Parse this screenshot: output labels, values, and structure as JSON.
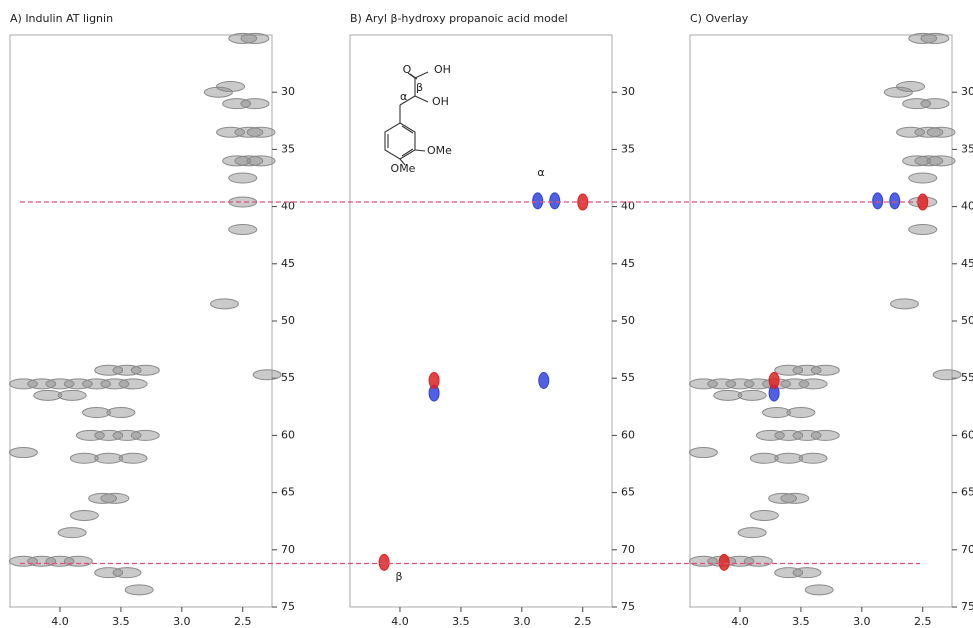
{
  "chart_data": [
    {
      "type": "scatter",
      "title": "A) Indulin AT lignin",
      "xlim": [
        4.41,
        2.26
      ],
      "ylim": [
        25,
        75
      ],
      "xticks": [
        {
          "value": 4,
          "label": "4.0"
        },
        3.5,
        {
          "value": 3,
          "label": "3.0"
        },
        2.5
      ],
      "yticks": [
        30,
        35,
        40,
        45,
        50,
        55,
        60,
        65,
        70,
        75
      ],
      "series": [
        {
          "color": "#8a8a8a",
          "x": [
            4.3,
            4.15,
            4.0,
            3.85,
            3.7,
            3.55,
            3.4,
            3.6,
            3.45,
            3.3,
            4.1,
            3.9,
            3.75,
            3.6,
            3.45,
            3.3,
            3.8,
            3.6,
            3.4,
            3.7,
            3.5,
            4.3,
            3.65,
            3.55,
            3.8,
            4.3,
            4.15,
            4.0,
            3.85,
            3.6,
            3.45,
            3.35,
            3.9,
            2.5,
            2.5,
            2.55,
            2.4,
            2.45,
            2.35,
            2.6,
            2.7,
            2.55,
            2.45,
            2.35,
            2.5,
            2.65,
            2.3,
            2.5,
            2.4,
            2.6
          ],
          "values": [
            55.5,
            55.5,
            55.5,
            55.5,
            55.5,
            55.5,
            55.5,
            54.3,
            54.3,
            54.3,
            56.5,
            56.5,
            60,
            60,
            60,
            60,
            62,
            62,
            62,
            58,
            58,
            61.5,
            65.5,
            65.5,
            67,
            71,
            71,
            71,
            71,
            72,
            72,
            73.5,
            68.5,
            39.6,
            37.5,
            31,
            31,
            33.5,
            33.5,
            33.5,
            30,
            36,
            36,
            36,
            42,
            48.5,
            54.7,
            25.3,
            25.3,
            29.5
          ]
        }
      ]
    },
    {
      "type": "scatter",
      "title": "B) Aryl β-hydroxy propanoic acid model",
      "xlim": [
        4.41,
        2.26
      ],
      "ylim": [
        25,
        75
      ],
      "xticks": [
        {
          "value": 4,
          "label": "4.0"
        },
        3.5,
        {
          "value": 3,
          "label": "3.0"
        },
        2.5
      ],
      "yticks": [
        30,
        35,
        40,
        45,
        50,
        55,
        60,
        65,
        70,
        75
      ],
      "annotations": [
        "α",
        "β"
      ],
      "structure_labels": [
        "O",
        "OH",
        "β",
        "α",
        "OH",
        "OMe",
        "OMe"
      ],
      "series": [
        {
          "color": "#3344dd",
          "x": [
            2.87,
            2.73,
            3.72,
            2.82
          ],
          "values": [
            39.5,
            39.5,
            56.3,
            55.2
          ]
        },
        {
          "color": "#dd2222",
          "x": [
            2.5,
            3.72,
            4.13
          ],
          "values": [
            39.6,
            55.2,
            71.1
          ]
        }
      ]
    },
    {
      "type": "scatter",
      "title": "C) Overlay",
      "xlim": [
        4.41,
        2.26
      ],
      "ylim": [
        25,
        75
      ],
      "xticks": [
        {
          "value": 4,
          "label": "4.0"
        },
        3.5,
        {
          "value": 3,
          "label": "3.0"
        },
        2.5
      ],
      "yticks": [
        30,
        35,
        40,
        45,
        50,
        55,
        60,
        65,
        70,
        75
      ],
      "series": [
        {
          "color": "#8a8a8a",
          "x": [
            4.3,
            4.15,
            4.0,
            3.85,
            3.7,
            3.55,
            3.4,
            3.6,
            3.45,
            3.3,
            4.1,
            3.9,
            3.75,
            3.6,
            3.45,
            3.3,
            3.8,
            3.6,
            3.4,
            3.7,
            3.5,
            4.3,
            3.65,
            3.55,
            3.8,
            4.3,
            4.15,
            4.0,
            3.85,
            3.6,
            3.45,
            3.35,
            3.9,
            2.5,
            2.5,
            2.55,
            2.4,
            2.45,
            2.35,
            2.6,
            2.7,
            2.55,
            2.45,
            2.35,
            2.5,
            2.65,
            2.3,
            2.5,
            2.4,
            2.6
          ],
          "values": [
            55.5,
            55.5,
            55.5,
            55.5,
            55.5,
            55.5,
            55.5,
            54.3,
            54.3,
            54.3,
            56.5,
            56.5,
            60,
            60,
            60,
            60,
            62,
            62,
            62,
            58,
            58,
            61.5,
            65.5,
            65.5,
            67,
            71,
            71,
            71,
            71,
            72,
            72,
            73.5,
            68.5,
            39.6,
            37.5,
            31,
            31,
            33.5,
            33.5,
            33.5,
            30,
            36,
            36,
            36,
            42,
            48.5,
            54.7,
            25.3,
            25.3,
            29.5
          ]
        },
        {
          "color": "#3344dd",
          "x": [
            2.87,
            2.73,
            3.72
          ],
          "values": [
            39.5,
            39.5,
            56.3
          ]
        },
        {
          "color": "#dd2222",
          "x": [
            2.5,
            3.72,
            4.13
          ],
          "values": [
            39.6,
            55.2,
            71.1
          ]
        }
      ]
    }
  ],
  "guide_lines": [
    39.6,
    71.2
  ]
}
